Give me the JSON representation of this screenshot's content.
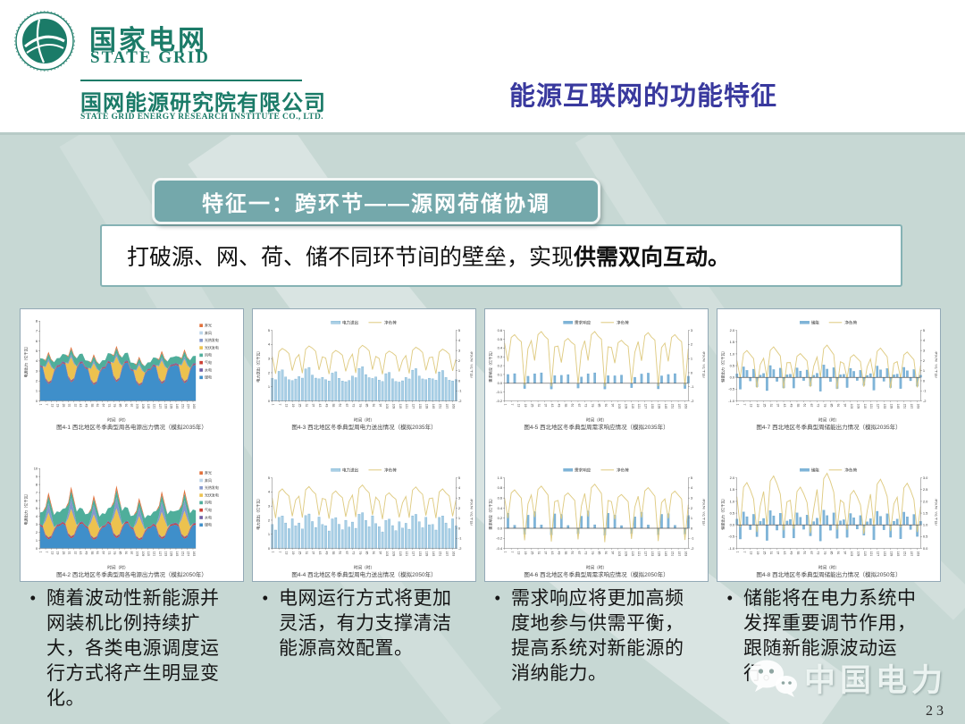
{
  "header": {
    "logo_zh": "国家电网",
    "logo_en": "STATE GRID",
    "org_zh": "国网能源研究院有限公司",
    "org_en": "STATE GRID ENERGY RESEARCH INSTITUTE CO., LTD.",
    "title": "能源互联网的功能特征"
  },
  "banner": {
    "label": "特征一：跨环节——源网荷储协调"
  },
  "intro": {
    "text_regular": "打破源、网、荷、储不同环节间的壁垒，实现",
    "text_bold": "供需双向互动。"
  },
  "bullets": [
    "随着波动性新能源并网装机比例持续扩大，各类电源调度运行方式将产生明显变化。",
    "电网运行方式将更加灵活，有力支撑清洁能源高效配置。",
    "需求响应将更加高频度地参与供需平衡，提高系统对新能源的消纳能力。",
    "储能将在电力系统中发挥重要调节作用，跟随新能源波动运行。"
  ],
  "watermark": {
    "brand": "中国电力",
    "page": "23"
  },
  "palette": {
    "slide_bg": "#c7d8d4",
    "brand_green": "#1b7b68",
    "title_purple": "#39399e",
    "banner_teal": "#74a8ab",
    "card_border": "#93a9b6",
    "coal_blue": "#3f8fca",
    "wind_green": "#4fae9b",
    "pv_yellow": "#ecc24f",
    "solar_thermal_slate": "#8598cc",
    "gas_red": "#cd3f34",
    "hydro_purple": "#6f5fa5",
    "curtail_pv_orange": "#e2703a",
    "curtail_wind_lightblue": "#bcd6ea",
    "bar_blue": "#a9cfe5",
    "bar_edge": "#5b9ec9",
    "netload_line_yellow": "#dfcb82"
  },
  "chart_common": {
    "xlabel": "时间（时）",
    "xticks": [
      1,
      7,
      13,
      19,
      25,
      31,
      37,
      43,
      49,
      55,
      61,
      67,
      73,
      79,
      85,
      91,
      97,
      103,
      109,
      115,
      121,
      127,
      133,
      139,
      145,
      151,
      157,
      163
    ],
    "hours_total": 166,
    "days": 7
  },
  "chart_data": [
    {
      "id": "fig-4-1",
      "panel": 1,
      "type": "area",
      "caption": "图4-1 西北地区冬季典型周各电源出力情况（模拟2035年）",
      "ylabel": "电源出力（亿千瓦）",
      "ylim": [
        0,
        8
      ],
      "ystep": 1,
      "day_scales": [
        1,
        1.1,
        0.95,
        1.12,
        0.9,
        1.02,
        1.05
      ],
      "series": [
        {
          "name": "煤电",
          "color": "#3f8fca",
          "daily_pattern": [
            3.45,
            3.3,
            2.1,
            1.7,
            1.9,
            2.9,
            3.4,
            3.45
          ]
        },
        {
          "name": "气电",
          "color": "#cd3f34",
          "daily_pattern": [
            0.08,
            0.08,
            0.08,
            0.08,
            0.08,
            0.08,
            0.08,
            0.08
          ]
        },
        {
          "name": "水电",
          "color": "#6f5fa5",
          "daily_pattern": [
            0.1,
            0.1,
            0.1,
            0.1,
            0.1,
            0.1,
            0.1,
            0.1
          ]
        },
        {
          "name": "光伏发电",
          "color": "#ecc24f",
          "daily_pattern": [
            0,
            0,
            1.1,
            2.1,
            1.3,
            0.05,
            0,
            0
          ]
        },
        {
          "name": "光热发电",
          "color": "#8598cc",
          "daily_pattern": [
            0,
            0,
            0.12,
            0.28,
            0.16,
            0,
            0,
            0
          ]
        },
        {
          "name": "风电",
          "color": "#4fae9b",
          "daily_pattern": [
            0.65,
            0.75,
            0.5,
            0.45,
            0.55,
            0.75,
            0.7,
            0.68
          ]
        },
        {
          "name": "弃光",
          "color": "#e2703a",
          "daily_pattern": [
            0,
            0,
            0.1,
            0.22,
            0.1,
            0,
            0,
            0
          ]
        }
      ],
      "legend": [
        {
          "label": "弃光",
          "color": "#e2703a"
        },
        {
          "label": "弃风",
          "color": "#bcd6ea"
        },
        {
          "label": "光热发电",
          "color": "#8598cc"
        },
        {
          "label": "光伏发电",
          "color": "#ecc24f"
        },
        {
          "label": "风电",
          "color": "#4fae9b"
        },
        {
          "label": "气电",
          "color": "#cd3f34"
        },
        {
          "label": "水电",
          "color": "#6f5fa5"
        },
        {
          "label": "煤电",
          "color": "#3f8fca"
        }
      ]
    },
    {
      "id": "fig-4-2",
      "panel": 1,
      "type": "area",
      "caption": "图4-2 西北地区冬季典型周各电源出力情况（模拟2050年）",
      "ylabel": "电源出力（亿千瓦）",
      "ylim": [
        0,
        10
      ],
      "ystep": 1,
      "day_scales": [
        1,
        1.1,
        0.95,
        1.12,
        0.9,
        1.02,
        1.05
      ],
      "series": [
        {
          "name": "煤电",
          "color": "#3f8fca",
          "daily_pattern": [
            2.85,
            2.6,
            1.5,
            1.15,
            1.35,
            2.2,
            2.75,
            2.85
          ]
        },
        {
          "name": "气电",
          "color": "#cd3f34",
          "daily_pattern": [
            0.14,
            0.14,
            0.14,
            0.14,
            0.14,
            0.14,
            0.14,
            0.14
          ]
        },
        {
          "name": "水电",
          "color": "#6f5fa5",
          "daily_pattern": [
            0.1,
            0.1,
            0.1,
            0.1,
            0.1,
            0.1,
            0.1,
            0.1
          ]
        },
        {
          "name": "光伏发电",
          "color": "#ecc24f",
          "daily_pattern": [
            0,
            0,
            1.7,
            3.1,
            1.9,
            0.15,
            0,
            0
          ]
        },
        {
          "name": "光热发电",
          "color": "#8598cc",
          "daily_pattern": [
            0,
            0,
            0.6,
            1.25,
            0.8,
            0.05,
            0,
            0
          ]
        },
        {
          "name": "风电",
          "color": "#4fae9b",
          "daily_pattern": [
            1.4,
            1.75,
            0.95,
            0.8,
            1.0,
            1.55,
            1.65,
            1.45
          ]
        },
        {
          "name": "弃光",
          "color": "#e2703a",
          "daily_pattern": [
            0,
            0,
            0.25,
            0.5,
            0.3,
            0,
            0,
            0
          ]
        }
      ],
      "legend": [
        {
          "label": "弃光",
          "color": "#e2703a"
        },
        {
          "label": "弃风",
          "color": "#bcd6ea"
        },
        {
          "label": "光热发电",
          "color": "#8598cc"
        },
        {
          "label": "光伏发电",
          "color": "#ecc24f"
        },
        {
          "label": "风电",
          "color": "#4fae9b"
        },
        {
          "label": "气电",
          "color": "#cd3f34"
        },
        {
          "label": "水电",
          "color": "#6f5fa5"
        },
        {
          "label": "煤电",
          "color": "#3f8fca"
        }
      ]
    },
    {
      "id": "fig-4-3",
      "panel": 2,
      "type": "bar",
      "caption": "图4-3 西北地区冬季典型周电力送出情况（模拟2035年）",
      "ylabel": "电力送出（亿千瓦）",
      "ylabel_right": "净负荷（亿千瓦）",
      "ylim": [
        0,
        5
      ],
      "ystep": 1,
      "ylim_right": [
        -2,
        5
      ],
      "ystep_right": 1,
      "day_scales": [
        1,
        1.08,
        0.94,
        1.1,
        0.92,
        1.04,
        0.98
      ],
      "bars": {
        "name": "电力送出",
        "color": "#a9cfe5",
        "edge": "#5b9ec9",
        "daily_pattern": [
          1.6,
          1.5,
          2.1,
          2.2,
          1.7,
          1.5,
          1.45,
          1.55
        ]
      },
      "line": {
        "name": "净负荷",
        "color": "#dfcb82",
        "axis": "right",
        "daily_pattern": [
          2.4,
          0.7,
          2.9,
          3.2,
          3.0,
          2.7,
          1.0,
          2.2
        ]
      }
    },
    {
      "id": "fig-4-4",
      "panel": 2,
      "type": "bar",
      "caption": "图4-4 西北地区冬季典型周电力送出情况（模拟2050年）",
      "ylabel": "电力送出（亿千瓦）",
      "ylabel_right": "净负荷（亿千瓦）",
      "ylim": [
        0,
        5
      ],
      "ystep": 1,
      "ylim_right": [
        -2,
        5
      ],
      "ystep_right": 1,
      "day_scales": [
        1,
        1.06,
        0.95,
        1.1,
        0.9,
        1.05,
        1
      ],
      "bars": {
        "name": "电力送出",
        "color": "#a9cfe5",
        "edge": "#5b9ec9",
        "daily_pattern": [
          1.7,
          1.3,
          2.2,
          2.3,
          1.8,
          1.4,
          2.1,
          1.6
        ]
      },
      "line": {
        "name": "净负荷",
        "color": "#dfcb82",
        "axis": "right",
        "daily_pattern": [
          3.0,
          1.0,
          3.6,
          3.9,
          3.5,
          3.2,
          1.2,
          2.8
        ]
      }
    },
    {
      "id": "fig-4-5",
      "panel": 3,
      "type": "bar",
      "caption": "图4-5 西北地区冬季典型周需求响应情况（模拟2035年）",
      "ylabel": "需求响应（亿千瓦）",
      "ylabel_right": "净负荷（亿千瓦）",
      "ylim": [
        -0.2,
        0.6
      ],
      "ystep": 0.1,
      "ylim_right": [
        -2,
        3
      ],
      "ystep_right": 1,
      "day_scales": [
        1,
        1.08,
        0.9,
        1.08,
        0.85,
        1.05,
        1
      ],
      "bars": {
        "name": "需求响应",
        "color": "#7fb4d8",
        "edge": "#5b9ec9",
        "daily_pattern": [
          0,
          0.1,
          0,
          0.11,
          0,
          0,
          -0.06,
          0.08
        ]
      },
      "line": {
        "name": "净负荷",
        "color": "#dfcb82",
        "axis": "right",
        "daily_pattern": [
          2.1,
          0.8,
          2.5,
          2.7,
          2.4,
          2.2,
          -0.9,
          1.7
        ]
      }
    },
    {
      "id": "fig-4-6",
      "panel": 3,
      "type": "bar",
      "caption": "图4-6 西北地区冬季典型周需求响应情况（模拟2050年）",
      "ylabel": "需求响应（亿千瓦）",
      "ylabel_right": "净负荷（亿千瓦）",
      "ylim": [
        -0.4,
        1.0
      ],
      "ystep": 0.2,
      "ylim_right": [
        -2,
        5
      ],
      "ystep_right": 1,
      "day_scales": [
        1,
        1.1,
        0.92,
        1.15,
        0.88,
        1.06,
        0.97
      ],
      "bars": {
        "name": "需求响应",
        "color": "#7fb4d8",
        "edge": "#5b9ec9",
        "daily_pattern": [
          0,
          0.3,
          0,
          0.06,
          0,
          0,
          -0.12,
          0.26
        ]
      },
      "line": {
        "name": "净负荷",
        "color": "#dfcb82",
        "axis": "right",
        "daily_pattern": [
          3.0,
          1.0,
          3.5,
          3.8,
          3.4,
          3.0,
          -1.2,
          2.4
        ]
      }
    },
    {
      "id": "fig-4-7",
      "panel": 4,
      "type": "bar",
      "caption": "图4-7 西北地区冬季典型周储能出力情况（模拟2035年）",
      "ylabel": "储能出力（亿千瓦）",
      "ylabel_right": "净负荷（亿千瓦）",
      "ylim": [
        -1.0,
        2.0
      ],
      "ystep": 0.5,
      "ylim_right": [
        -2,
        5
      ],
      "ystep_right": 1,
      "day_scales": [
        1,
        1.12,
        0.9,
        1.18,
        0.86,
        1.08,
        0.95
      ],
      "bars": {
        "name": "储能",
        "color": "#7fb4d8",
        "edge": "#5b9ec9",
        "daily_pattern": [
          0.15,
          -0.5,
          0.45,
          0.3,
          -0.15,
          0.35,
          -0.4,
          0.1
        ]
      },
      "line": {
        "name": "净负荷",
        "color": "#dfcb82",
        "axis": "right",
        "daily_pattern": [
          2.0,
          0.3,
          2.7,
          3.0,
          2.6,
          2.2,
          -0.7,
          1.6
        ]
      }
    },
    {
      "id": "fig-4-8",
      "panel": 4,
      "type": "bar",
      "caption": "图4-8 西北地区冬季典型周储能出力情况（模拟2050年）",
      "ylabel": "储能出力（亿千瓦）",
      "ylabel_right": "净负荷（亿千瓦）",
      "ylim": [
        -1.0,
        2.0
      ],
      "ystep": 0.5,
      "ylim_right": [
        0,
        3
      ],
      "ystep_right": 0.5,
      "day_scales": [
        1,
        1.1,
        0.93,
        1.14,
        0.88,
        1.05,
        0.99
      ],
      "bars": {
        "name": "储能",
        "color": "#7fb4d8",
        "edge": "#5b9ec9",
        "daily_pattern": [
          0.25,
          -0.6,
          0.55,
          0.35,
          -0.2,
          0.45,
          -0.5,
          0.15
        ]
      },
      "line": {
        "name": "净负荷",
        "color": "#dfcb82",
        "axis": "right",
        "daily_pattern": [
          2.2,
          0.9,
          2.6,
          2.8,
          2.5,
          2.1,
          0.7,
          1.8
        ]
      }
    }
  ]
}
